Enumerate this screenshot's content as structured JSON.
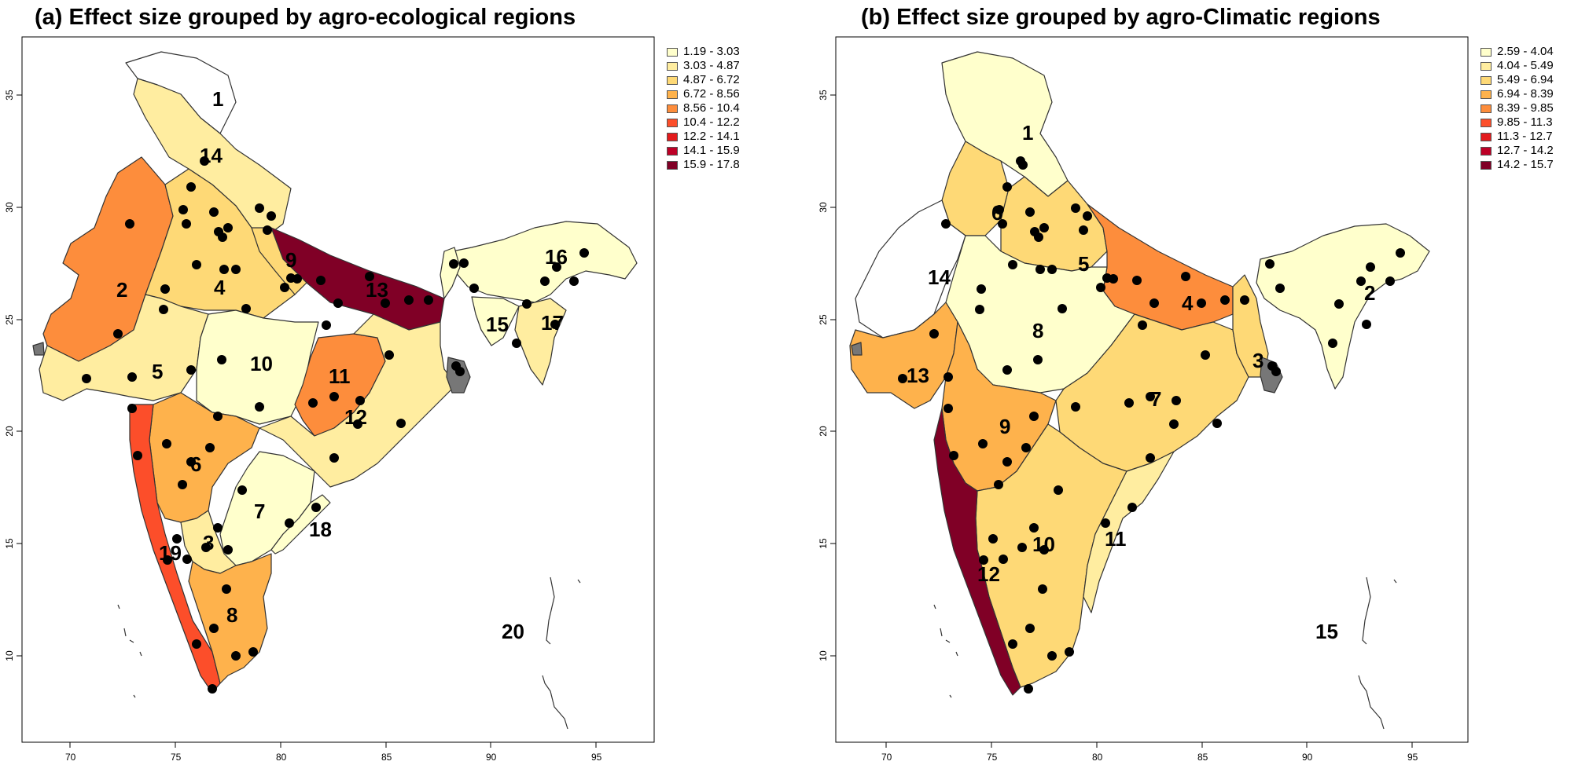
{
  "panels": [
    {
      "id": "a",
      "title": "(a) Effect size grouped by agro-ecological regions",
      "legend": [
        {
          "range": "1.19 - 3.03",
          "color": "#ffffcc"
        },
        {
          "range": "3.03 - 4.87",
          "color": "#ffeda0"
        },
        {
          "range": "4.87 - 6.72",
          "color": "#fed976"
        },
        {
          "range": "6.72 - 8.56",
          "color": "#feb24c"
        },
        {
          "range": "8.56 - 10.4",
          "color": "#fd8d3c"
        },
        {
          "range": "10.4 - 12.2",
          "color": "#fc4e2a"
        },
        {
          "range": "12.2 - 14.1",
          "color": "#e31a1c"
        },
        {
          "range": "14.1 - 15.9",
          "color": "#bd0026"
        },
        {
          "range": "15.9 - 17.8",
          "color": "#800026"
        }
      ],
      "regions": [
        {
          "label": "1"
        },
        {
          "label": "2"
        },
        {
          "label": "3"
        },
        {
          "label": "4"
        },
        {
          "label": "5"
        },
        {
          "label": "6"
        },
        {
          "label": "7"
        },
        {
          "label": "8"
        },
        {
          "label": "9"
        },
        {
          "label": "10"
        },
        {
          "label": "11"
        },
        {
          "label": "12"
        },
        {
          "label": "13"
        },
        {
          "label": "14"
        },
        {
          "label": "15"
        },
        {
          "label": "16"
        },
        {
          "label": "17"
        },
        {
          "label": "18"
        },
        {
          "label": "19"
        },
        {
          "label": "20"
        }
      ]
    },
    {
      "id": "b",
      "title": "(b) Effect size grouped by agro-Climatic regions",
      "legend": [
        {
          "range": "2.59 - 4.04",
          "color": "#ffffcc"
        },
        {
          "range": "4.04 - 5.49",
          "color": "#ffeda0"
        },
        {
          "range": "5.49 - 6.94",
          "color": "#fed976"
        },
        {
          "range": "6.94 - 8.39",
          "color": "#feb24c"
        },
        {
          "range": "8.39 - 9.85",
          "color": "#fd8d3c"
        },
        {
          "range": "9.85 - 11.3",
          "color": "#fc4e2a"
        },
        {
          "range": "11.3 - 12.7",
          "color": "#e31a1c"
        },
        {
          "range": "12.7 - 14.2",
          "color": "#bd0026"
        },
        {
          "range": "14.2 - 15.7",
          "color": "#800026"
        }
      ],
      "regions": [
        {
          "label": "1"
        },
        {
          "label": "2"
        },
        {
          "label": "3"
        },
        {
          "label": "4"
        },
        {
          "label": "5"
        },
        {
          "label": "6"
        },
        {
          "label": "7"
        },
        {
          "label": "8"
        },
        {
          "label": "9"
        },
        {
          "label": "10"
        },
        {
          "label": "11"
        },
        {
          "label": "12"
        },
        {
          "label": "13"
        },
        {
          "label": "14"
        },
        {
          "label": "15"
        }
      ]
    }
  ],
  "axes": {
    "x_ticks": [
      "70",
      "75",
      "80",
      "85",
      "90",
      "95"
    ],
    "y_ticks": [
      "10",
      "15",
      "20",
      "25",
      "30",
      "35"
    ]
  }
}
